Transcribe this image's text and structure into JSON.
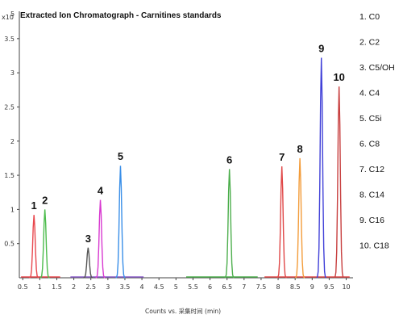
{
  "chart_data": {
    "type": "line",
    "title": "Extracted Ion Chromatograph - Carnitines standards",
    "y_scale_label": "x10",
    "y_scale_exponent": "5",
    "xlabel": "Counts vs. 采集时间 (min)",
    "xlim": [
      0.4,
      10.2
    ],
    "ylim": [
      0,
      3.9
    ],
    "x_ticks": [
      "0.5",
      "1",
      "1.5",
      "2",
      "2.5",
      "3",
      "3.5",
      "4",
      "4.5",
      "5",
      "5.5",
      "6",
      "6.5",
      "7",
      "7.5",
      "8",
      "8.5",
      "9",
      "9.5",
      "10"
    ],
    "y_ticks": [
      "0.5",
      "1",
      "1.5",
      "2",
      "2.5",
      "3",
      "3.5"
    ],
    "grid": false,
    "legend_position": "right",
    "series": [
      {
        "name": "C0",
        "peak_label": "1",
        "rt": 0.83,
        "height": 0.92,
        "color": "#e8474d"
      },
      {
        "name": "C2",
        "peak_label": "2",
        "rt": 1.15,
        "height": 1.0,
        "color": "#4cbc4c"
      },
      {
        "name": "C5OH",
        "peak_label": "3",
        "rt": 2.42,
        "height": 0.44,
        "color": "#555555"
      },
      {
        "name": "C4",
        "peak_label": "4",
        "rt": 2.78,
        "height": 1.14,
        "color": "#d838d0"
      },
      {
        "name": "C5i",
        "peak_label": "5",
        "rt": 3.37,
        "height": 1.64,
        "color": "#3a8fe8"
      },
      {
        "name": "C8",
        "peak_label": "6",
        "rt": 6.57,
        "height": 1.59,
        "color": "#4cae4c"
      },
      {
        "name": "C12",
        "peak_label": "7",
        "rt": 8.11,
        "height": 1.63,
        "color": "#e04848"
      },
      {
        "name": "C14",
        "peak_label": "8",
        "rt": 8.64,
        "height": 1.75,
        "color": "#f39c3a"
      },
      {
        "name": "C16",
        "peak_label": "9",
        "rt": 9.27,
        "height": 3.22,
        "color": "#4040d8"
      },
      {
        "name": "C18",
        "peak_label": "10",
        "rt": 9.79,
        "height": 2.8,
        "color": "#c84040"
      }
    ],
    "legend": [
      "1. C0",
      "2. C2",
      "3. C5/OH",
      "4. C4",
      "5. C5i",
      "6. C8",
      "7. C12",
      "8. C14",
      "9. C16",
      "10. C18"
    ],
    "baseline_segments": [
      {
        "from": 0.45,
        "to": 1.6,
        "color": "#e8474d"
      },
      {
        "from": 1.9,
        "to": 4.05,
        "color": "#8a5cc8"
      },
      {
        "from": 5.3,
        "to": 7.4,
        "color": "#4cae4c"
      },
      {
        "from": 7.6,
        "to": 10.1,
        "color": "#e04848"
      }
    ]
  }
}
